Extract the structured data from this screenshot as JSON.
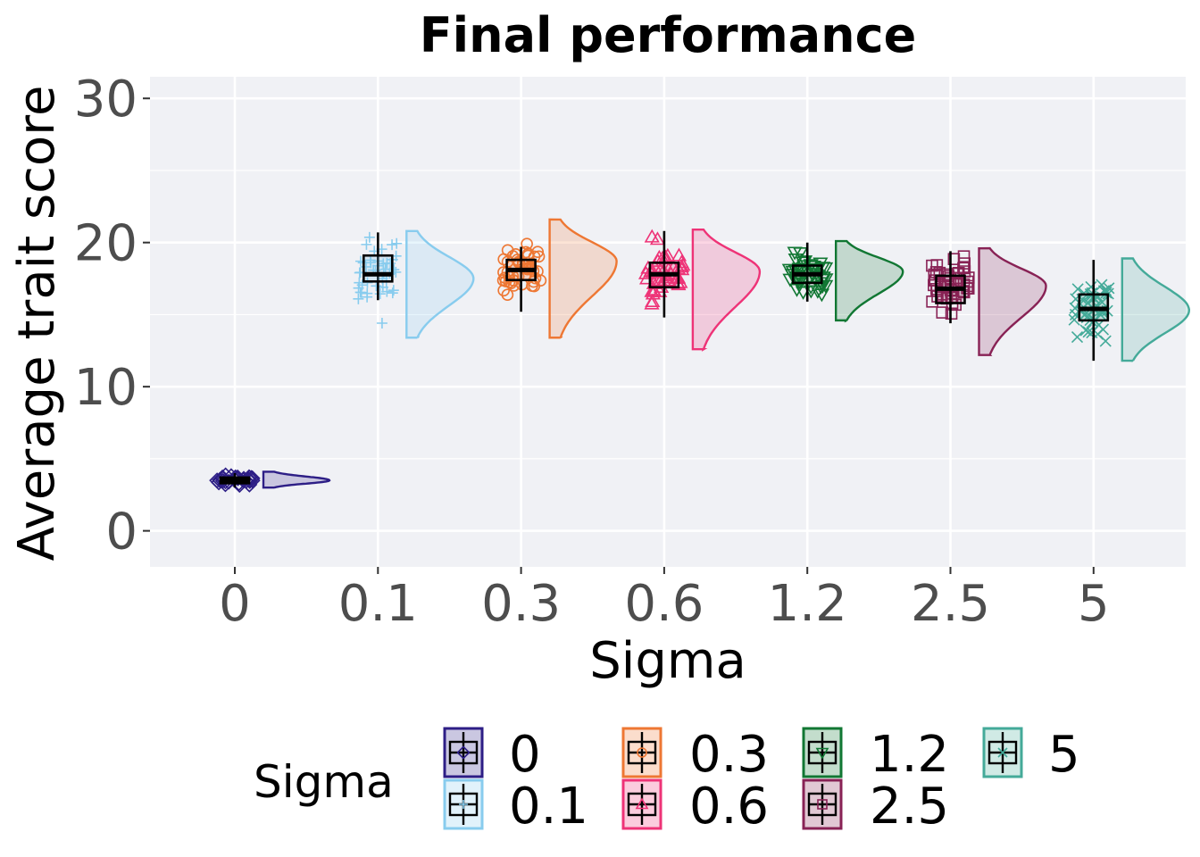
{
  "chart_data": {
    "type": "raincloud",
    "title": "Final performance",
    "xlabel": "Sigma",
    "ylabel": "Average trait score",
    "ylim": [
      -2.5,
      31.5
    ],
    "yticks": [
      0,
      10,
      20,
      30
    ],
    "categories": [
      "0",
      "0.1",
      "0.3",
      "0.6",
      "1.2",
      "2.5",
      "5"
    ],
    "grid": true,
    "legend": {
      "title": "Sigma",
      "position": "bottom"
    },
    "series": [
      {
        "name": "0",
        "color": "#2d1e86",
        "marker": "diamond",
        "box": {
          "whislo": 3.0,
          "q1": 3.3,
          "med": 3.5,
          "q3": 3.7,
          "whishi": 4.0
        },
        "min": 3.0,
        "max": 4.1,
        "mode": 3.5
      },
      {
        "name": "0.1",
        "color": "#88ccee",
        "marker": "plus",
        "box": {
          "whislo": 16.0,
          "q1": 17.3,
          "med": 17.8,
          "q3": 19.1,
          "whishi": 20.7
        },
        "min": 13.4,
        "max": 20.8,
        "mode": 17.5
      },
      {
        "name": "0.3",
        "color": "#ee7733",
        "marker": "circle",
        "box": {
          "whislo": 15.2,
          "q1": 17.4,
          "med": 18.1,
          "q3": 18.8,
          "whishi": 19.7
        },
        "min": 13.4,
        "max": 21.6,
        "mode": 18.7
      },
      {
        "name": "0.6",
        "color": "#ee3377",
        "marker": "triangle-up",
        "box": {
          "whislo": 14.8,
          "q1": 16.9,
          "med": 17.8,
          "q3": 18.6,
          "whishi": 20.8
        },
        "min": 12.6,
        "max": 20.9,
        "mode": 18.0
      },
      {
        "name": "1.2",
        "color": "#117733",
        "marker": "triangle-down",
        "box": {
          "whislo": 15.9,
          "q1": 17.2,
          "med": 17.8,
          "q3": 18.4,
          "whishi": 20.0
        },
        "min": 14.6,
        "max": 20.1,
        "mode": 18.0
      },
      {
        "name": "2.5",
        "color": "#882255",
        "marker": "square",
        "box": {
          "whislo": 14.4,
          "q1": 15.8,
          "med": 16.8,
          "q3": 17.7,
          "whishi": 19.4
        },
        "min": 12.2,
        "max": 19.6,
        "mode": 17.0
      },
      {
        "name": "5",
        "color": "#44aa99",
        "marker": "cross",
        "box": {
          "whislo": 11.8,
          "q1": 14.6,
          "med": 15.4,
          "q3": 16.4,
          "whishi": 18.8
        },
        "min": 11.8,
        "max": 18.9,
        "mode": 15.3
      }
    ]
  }
}
